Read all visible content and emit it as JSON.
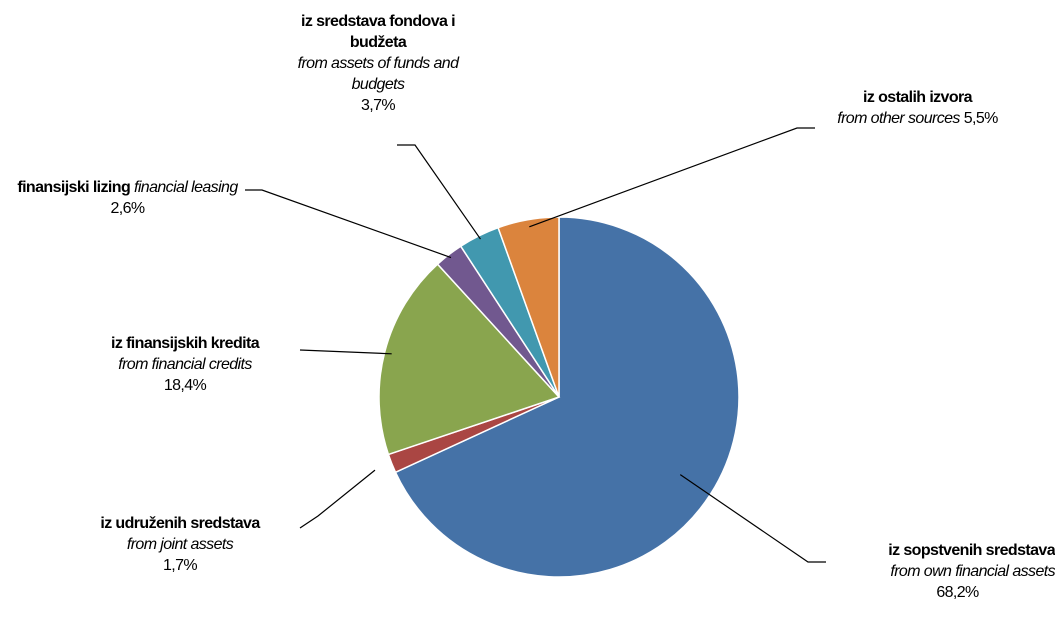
{
  "chart_data": {
    "type": "pie",
    "colors": {
      "own": "#4572a7",
      "joint": "#aa4643",
      "credits": "#89a54e",
      "leasing": "#71588f",
      "funds": "#4198af",
      "other": "#db843d",
      "leader": "#000000",
      "slice_border": "#ffffff"
    },
    "slices": [
      {
        "key": "own",
        "name": "iz sopstvenih sredstava",
        "name_en": "from own financial assets",
        "value": 68.2,
        "value_label": "68,2%"
      },
      {
        "key": "joint",
        "name": "iz udruženih sredstava",
        "name_en": "from joint assets",
        "value": 1.7,
        "value_label": "1,7%"
      },
      {
        "key": "credits",
        "name": "iz finansijskih kredita",
        "name_en": "from financial credits",
        "value": 18.4,
        "value_label": "18,4%"
      },
      {
        "key": "leasing",
        "name": "finansijski lizing",
        "name_en": "financial leasing",
        "value": 2.6,
        "value_label": "2,6%"
      },
      {
        "key": "funds",
        "name": "iz sredstava fondova i budžeta",
        "name_en": "from assets of funds and budgets",
        "value": 3.7,
        "value_label": "3,7%"
      },
      {
        "key": "other",
        "name": "iz ostalih izvora",
        "name_en": "from other sources",
        "value": 5.5,
        "value_label": "5,5%"
      }
    ]
  }
}
